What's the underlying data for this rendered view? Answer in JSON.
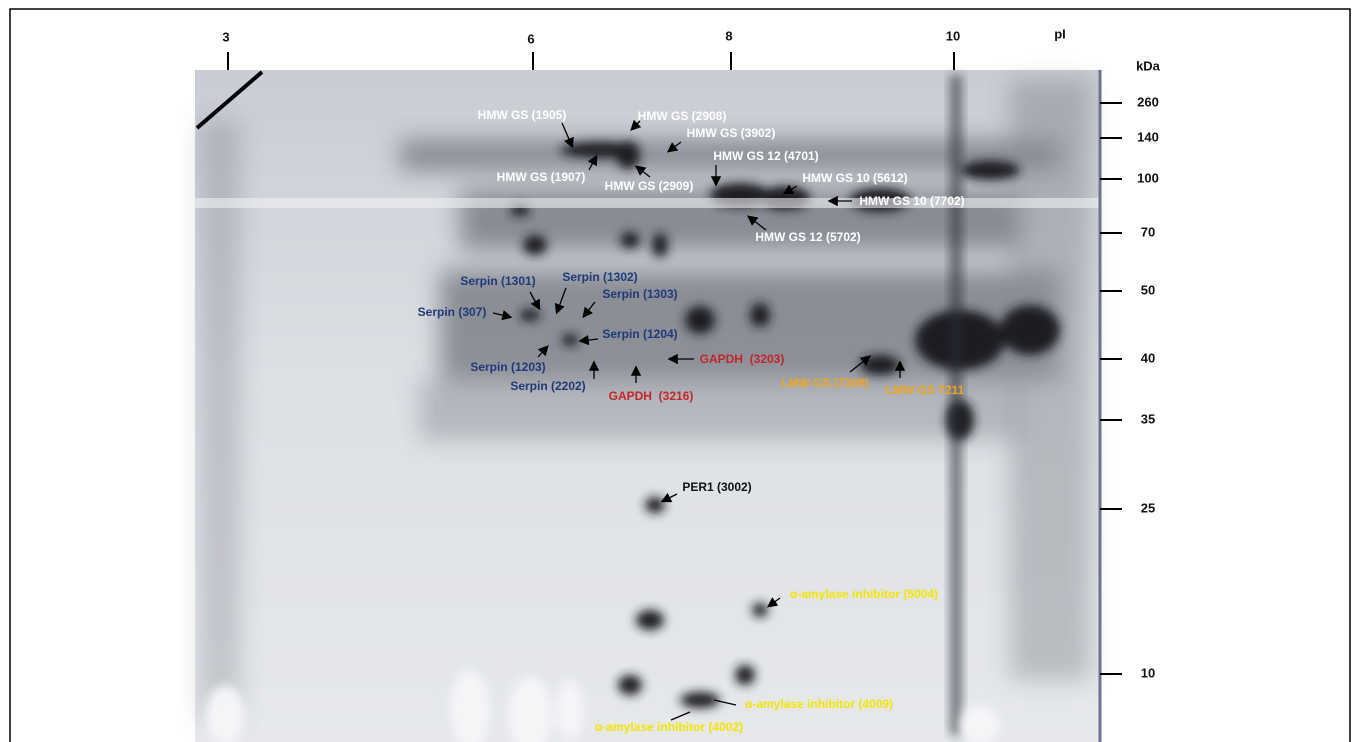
{
  "pi_axis": {
    "label": "pI",
    "ticks": [
      "3",
      "6",
      "8",
      "10"
    ]
  },
  "kda_axis": {
    "label": "kDa",
    "ticks": [
      "260",
      "140",
      "100",
      "70",
      "50",
      "40",
      "35",
      "25",
      "10"
    ]
  },
  "annotations": {
    "hmw_gs": [
      "HMW GS (1905)",
      "HMW GS (2908)",
      "HMW GS (3902)",
      "HMW GS 12 (4701)",
      "HMW GS (1907)",
      "HMW GS (2909)",
      "HMW GS 10 (5612)",
      "HMW GS 10 (7702)",
      "HMW GS 12 (5702)"
    ],
    "serpin": [
      "Serpin (1301)",
      "Serpin (1302)",
      "Serpin (1303)",
      "Serpin (307)",
      "Serpin (1204)",
      "Serpin (1203)",
      "Serpin (2202)"
    ],
    "gapdh": [
      "GAPDH  (3203)",
      "GAPDH  (3216)"
    ],
    "lmw_gs": [
      "LMW GS (7309)",
      "LMW GS 7211"
    ],
    "per": [
      "PER1 (3002)"
    ],
    "amylase_inhibitor": [
      "α-amylase inhibitor (5004)",
      "α-amylase inhibitor (4009)",
      "α-amylase inhibitor (4002)"
    ]
  }
}
